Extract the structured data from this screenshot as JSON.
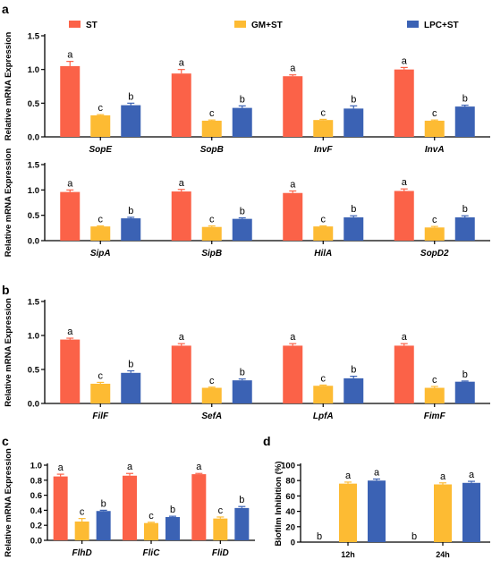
{
  "colors": {
    "ST": "#fb6248",
    "GM+ST": "#fdbb33",
    "LPC+ST": "#3b62b4",
    "error": "#444444"
  },
  "legend": {
    "items": [
      "ST",
      "GM+ST",
      "LPC+ST"
    ]
  },
  "panel_letters": {
    "a": "a",
    "b": "b",
    "c": "c",
    "d": "d"
  },
  "chart_data": [
    {
      "type": "bar",
      "panel": "a",
      "ylabel": "Relative mRNA Expression",
      "ylim": [
        0,
        1.5
      ],
      "yticks": [
        "0.0",
        "0.5",
        "1.0",
        "1.5"
      ],
      "categories": [
        "SopE",
        "SopB",
        "InvF",
        "InvA"
      ],
      "series": [
        {
          "name": "ST",
          "values": [
            1.05,
            0.94,
            0.9,
            1.0
          ],
          "errors": [
            0.07,
            0.06,
            0.02,
            0.03
          ],
          "letters": [
            "a",
            "a",
            "a",
            "a"
          ]
        },
        {
          "name": "GM+ST",
          "values": [
            0.32,
            0.24,
            0.25,
            0.24
          ],
          "errors": [
            0.01,
            0.01,
            0.01,
            0.01
          ],
          "letters": [
            "c",
            "c",
            "c",
            "c"
          ]
        },
        {
          "name": "LPC+ST",
          "values": [
            0.47,
            0.43,
            0.42,
            0.45
          ],
          "errors": [
            0.03,
            0.03,
            0.04,
            0.02
          ],
          "letters": [
            "b",
            "b",
            "b",
            "b"
          ]
        }
      ]
    },
    {
      "type": "bar",
      "panel": "a2",
      "ylabel": "Relative mRNA Expression",
      "ylim": [
        0,
        1.5
      ],
      "yticks": [
        "0.0",
        "0.5",
        "1.0",
        "1.5"
      ],
      "categories": [
        "SipA",
        "SipB",
        "HilA",
        "SopD2"
      ],
      "series": [
        {
          "name": "ST",
          "values": [
            0.96,
            0.97,
            0.94,
            0.98
          ],
          "errors": [
            0.04,
            0.04,
            0.04,
            0.04
          ],
          "letters": [
            "a",
            "a",
            "a",
            "a"
          ]
        },
        {
          "name": "GM+ST",
          "values": [
            0.28,
            0.27,
            0.28,
            0.26
          ],
          "errors": [
            0.01,
            0.02,
            0.01,
            0.02
          ],
          "letters": [
            "c",
            "c",
            "c",
            "c"
          ]
        },
        {
          "name": "LPC+ST",
          "values": [
            0.44,
            0.43,
            0.46,
            0.46
          ],
          "errors": [
            0.02,
            0.02,
            0.03,
            0.03
          ],
          "letters": [
            "b",
            "b",
            "b",
            "b"
          ]
        }
      ]
    },
    {
      "type": "bar",
      "panel": "b",
      "ylabel": "Relative mRNA Expression",
      "ylim": [
        0,
        1.5
      ],
      "yticks": [
        "0.0",
        "0.5",
        "1.0",
        "1.5"
      ],
      "categories": [
        "FilF",
        "SefA",
        "LpfA",
        "FimF"
      ],
      "series": [
        {
          "name": "ST",
          "values": [
            0.94,
            0.85,
            0.85,
            0.85
          ],
          "errors": [
            0.02,
            0.03,
            0.03,
            0.03
          ],
          "letters": [
            "a",
            "a",
            "a",
            "a"
          ]
        },
        {
          "name": "GM+ST",
          "values": [
            0.29,
            0.23,
            0.26,
            0.23
          ],
          "errors": [
            0.02,
            0.01,
            0.01,
            0.02
          ],
          "letters": [
            "c",
            "c",
            "c",
            "c"
          ]
        },
        {
          "name": "LPC+ST",
          "values": [
            0.45,
            0.34,
            0.37,
            0.32
          ],
          "errors": [
            0.03,
            0.02,
            0.03,
            0.01
          ],
          "letters": [
            "b",
            "b",
            "b",
            "b"
          ]
        }
      ]
    },
    {
      "type": "bar",
      "panel": "c",
      "ylabel": "Relative mRNA Expression",
      "ylim": [
        0,
        1.0
      ],
      "yticks": [
        "0.0",
        "0.2",
        "0.4",
        "0.6",
        "0.8",
        "1.0"
      ],
      "categories": [
        "FlhD",
        "FliC",
        "FliD"
      ],
      "series": [
        {
          "name": "ST",
          "values": [
            0.85,
            0.86,
            0.88
          ],
          "errors": [
            0.03,
            0.03,
            0.01
          ],
          "letters": [
            "a",
            "a",
            "a"
          ]
        },
        {
          "name": "GM+ST",
          "values": [
            0.25,
            0.23,
            0.29
          ],
          "errors": [
            0.04,
            0.01,
            0.02
          ],
          "letters": [
            "c",
            "c",
            "c"
          ]
        },
        {
          "name": "LPC+ST",
          "values": [
            0.39,
            0.31,
            0.43
          ],
          "errors": [
            0.01,
            0.01,
            0.02
          ],
          "letters": [
            "b",
            "b",
            "b"
          ]
        }
      ]
    },
    {
      "type": "bar",
      "panel": "d",
      "ylabel": "Biofilm Inhibition (%)",
      "ylim": [
        0,
        100
      ],
      "yticks": [
        "0",
        "20",
        "40",
        "60",
        "80",
        "100"
      ],
      "categories": [
        "12h",
        "24h"
      ],
      "series": [
        {
          "name": "ST",
          "values": [
            0,
            0
          ],
          "errors": [
            0,
            0
          ],
          "letters": [
            "b",
            "b"
          ]
        },
        {
          "name": "GM+ST",
          "values": [
            76,
            75
          ],
          "errors": [
            2,
            2
          ],
          "letters": [
            "a",
            "a"
          ]
        },
        {
          "name": "LPC+ST",
          "values": [
            80,
            77
          ],
          "errors": [
            2,
            2
          ],
          "letters": [
            "a",
            "a"
          ]
        }
      ]
    }
  ]
}
